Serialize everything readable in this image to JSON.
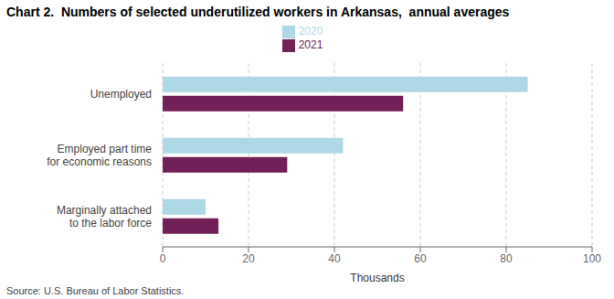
{
  "chart_data": {
    "type": "bar",
    "title": "Chart 2.  Numbers of selected underutilized workers in Arkansas,  annual averages",
    "orientation": "horizontal",
    "categories": [
      "Marginally attached\nto the labor force",
      "Employed part time\nfor economic reasons",
      "Unemployed"
    ],
    "series": [
      {
        "name": "2020",
        "color": "#add8e6",
        "values": [
          10,
          42,
          85
        ]
      },
      {
        "name": "2021",
        "color": "#722057",
        "values": [
          13,
          29,
          56
        ]
      }
    ],
    "xlabel": "Thousands",
    "xlim": [
      0,
      100
    ],
    "xticks": [
      0,
      20,
      40,
      60,
      80,
      100
    ],
    "grid": true,
    "legend": "top",
    "source": "Source: U.S. Bureau of Labor Statistics."
  }
}
